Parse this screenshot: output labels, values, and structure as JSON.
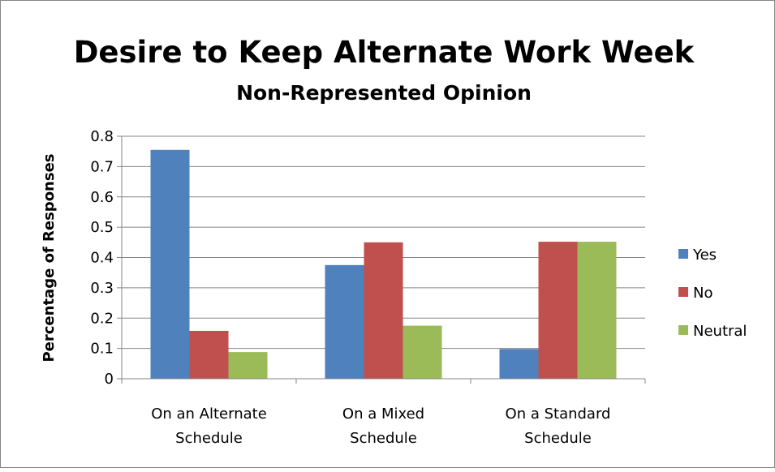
{
  "chart_data": {
    "type": "bar",
    "title": "Desire to Keep Alternate Work Week",
    "subtitle": "Non-Represented Opinion",
    "xlabel": "",
    "ylabel": "Percentage of Responses",
    "ylim": [
      0,
      0.8
    ],
    "yticks": [
      "0",
      "0.1",
      "0.2",
      "0.3",
      "0.4",
      "0.5",
      "0.6",
      "0.7",
      "0.8"
    ],
    "grid": true,
    "legend_position": "right",
    "categories": [
      [
        "On an Alternate",
        "Schedule"
      ],
      [
        "On a Mixed",
        "Schedule"
      ],
      [
        "On a Standard",
        "Schedule"
      ]
    ],
    "series": [
      {
        "name": "Yes",
        "color": "#4f81bd",
        "values": [
          0.755,
          0.375,
          0.098
        ]
      },
      {
        "name": "No",
        "color": "#c0504d",
        "values": [
          0.158,
          0.45,
          0.452
        ]
      },
      {
        "name": "Neutral",
        "color": "#9bbb59",
        "values": [
          0.088,
          0.175,
          0.452
        ]
      }
    ]
  }
}
